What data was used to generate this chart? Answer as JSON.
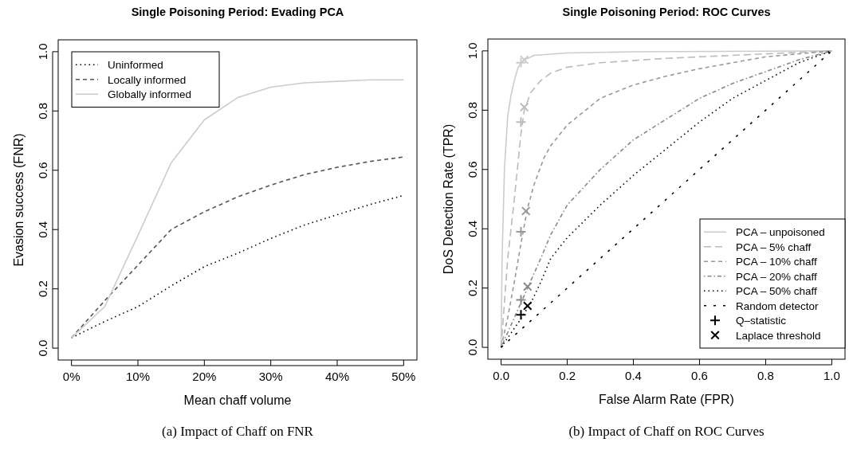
{
  "chart_data": [
    {
      "type": "line",
      "title": "Single Poisoning Period: Evading PCA",
      "xlabel": "Mean chaff volume",
      "ylabel": "Evasion success (FNR)",
      "annotations": [
        "(a) Impact of Chaff on FNR"
      ],
      "x": [
        0,
        5,
        10,
        15,
        20,
        25,
        30,
        35,
        40,
        45,
        50
      ],
      "xlim": [
        -2,
        52
      ],
      "xticks": [
        {
          "value": 0,
          "label": "0%"
        },
        {
          "value": 10,
          "label": "10%"
        },
        {
          "value": 20,
          "label": "20%"
        },
        {
          "value": 30,
          "label": "30%"
        },
        {
          "value": 40,
          "label": "40%"
        },
        {
          "value": 50,
          "label": "50%"
        }
      ],
      "ylim": [
        -0.04,
        1.04
      ],
      "yticks": [
        {
          "value": 0,
          "label": "0.0"
        },
        {
          "value": 0.2,
          "label": "0.2"
        },
        {
          "value": 0.4,
          "label": "0.4"
        },
        {
          "value": 0.6,
          "label": "0.6"
        },
        {
          "value": 0.8,
          "label": "0.8"
        },
        {
          "value": 1,
          "label": "1.0"
        }
      ],
      "legend": "top left",
      "series": [
        {
          "name": "Uninformed",
          "color": "#000000",
          "line_style": "dotted",
          "values": [
            0.035,
            0.09,
            0.14,
            0.21,
            0.275,
            0.32,
            0.37,
            0.415,
            0.45,
            0.485,
            0.515
          ]
        },
        {
          "name": "Locally informed",
          "color": "#555555",
          "line_style": "dashed",
          "values": [
            0.035,
            0.16,
            0.28,
            0.4,
            0.46,
            0.51,
            0.55,
            0.585,
            0.61,
            0.63,
            0.645
          ]
        },
        {
          "name": "Globally informed",
          "color": "#cccccc",
          "line_style": "solid",
          "values": [
            0.035,
            0.14,
            0.38,
            0.625,
            0.77,
            0.845,
            0.88,
            0.895,
            0.9,
            0.905,
            0.905
          ]
        }
      ]
    },
    {
      "type": "line",
      "title": "Single Poisoning Period: ROC Curves",
      "xlabel": "False Alarm Rate (FPR)",
      "ylabel": "DoS Detection Rate (TPR)",
      "annotations": [
        "(b) Impact of Chaff on ROC Curves"
      ],
      "xlim": [
        -0.04,
        1.04
      ],
      "xticks": [
        {
          "value": 0,
          "label": "0.0"
        },
        {
          "value": 0.2,
          "label": "0.2"
        },
        {
          "value": 0.4,
          "label": "0.4"
        },
        {
          "value": 0.6,
          "label": "0.6"
        },
        {
          "value": 0.8,
          "label": "0.8"
        },
        {
          "value": 1,
          "label": "1.0"
        }
      ],
      "ylim": [
        -0.04,
        1.04
      ],
      "yticks": [
        {
          "value": 0,
          "label": "0.0"
        },
        {
          "value": 0.2,
          "label": "0.2"
        },
        {
          "value": 0.4,
          "label": "0.4"
        },
        {
          "value": 0.6,
          "label": "0.6"
        },
        {
          "value": 0.8,
          "label": "0.8"
        },
        {
          "value": 1,
          "label": "1.0"
        }
      ],
      "legend": "bottom right",
      "series": [
        {
          "name": "PCA – unpoisoned",
          "color": "#cccccc",
          "line_style": "solid",
          "x": [
            0,
            0.003,
            0.01,
            0.02,
            0.03,
            0.04,
            0.05,
            0.06,
            0.08,
            0.1,
            0.2,
            0.4,
            1
          ],
          "values": [
            0,
            0.3,
            0.6,
            0.78,
            0.85,
            0.9,
            0.94,
            0.96,
            0.975,
            0.985,
            0.993,
            0.997,
            1
          ]
        },
        {
          "name": "PCA – 5% chaff",
          "color": "#bbbbbb",
          "line_style": "longdash",
          "x": [
            0,
            0.01,
            0.02,
            0.04,
            0.06,
            0.07,
            0.09,
            0.12,
            0.15,
            0.2,
            0.3,
            0.5,
            0.7,
            1
          ],
          "values": [
            0,
            0.15,
            0.3,
            0.5,
            0.72,
            0.8,
            0.86,
            0.9,
            0.925,
            0.945,
            0.96,
            0.975,
            0.985,
            1
          ]
        },
        {
          "name": "PCA – 10% chaff",
          "color": "#999999",
          "line_style": "dashed",
          "x": [
            0,
            0.02,
            0.04,
            0.06,
            0.08,
            0.1,
            0.13,
            0.15,
            0.2,
            0.3,
            0.4,
            0.5,
            0.6,
            0.7,
            0.8,
            1
          ],
          "values": [
            0,
            0.1,
            0.22,
            0.35,
            0.47,
            0.55,
            0.64,
            0.68,
            0.75,
            0.84,
            0.885,
            0.915,
            0.94,
            0.96,
            0.98,
            1
          ]
        },
        {
          "name": "PCA – 20% chaff",
          "color": "#888888",
          "line_style": "dotdash",
          "x": [
            0,
            0.04,
            0.08,
            0.12,
            0.15,
            0.2,
            0.3,
            0.4,
            0.5,
            0.6,
            0.7,
            0.8,
            0.9,
            1
          ],
          "values": [
            0,
            0.1,
            0.2,
            0.3,
            0.38,
            0.48,
            0.6,
            0.7,
            0.77,
            0.84,
            0.89,
            0.93,
            0.97,
            1
          ]
        },
        {
          "name": "PCA – 50% chaff",
          "color": "#000000",
          "line_style": "dotted",
          "x": [
            0,
            0.05,
            0.09,
            0.12,
            0.15,
            0.2,
            0.3,
            0.4,
            0.5,
            0.6,
            0.7,
            0.8,
            0.9,
            1
          ],
          "values": [
            0,
            0.08,
            0.15,
            0.22,
            0.3,
            0.37,
            0.48,
            0.58,
            0.67,
            0.76,
            0.84,
            0.9,
            0.96,
            1
          ]
        },
        {
          "name": "Random detector",
          "color": "#000000",
          "line_style": "sparsedash",
          "x": [
            0,
            1
          ],
          "values": [
            0,
            1
          ]
        },
        {
          "name": "Q–statistic",
          "type": "scatter",
          "marker": "plus",
          "color": "#000000",
          "colors": [
            "#cccccc",
            "#bbbbbb",
            "#999999",
            "#888888",
            "#000000"
          ],
          "x": [
            0.06,
            0.06,
            0.06,
            0.06,
            0.06
          ],
          "values": [
            0.96,
            0.76,
            0.39,
            0.16,
            0.11
          ]
        },
        {
          "name": "Laplace threshold",
          "type": "scatter",
          "marker": "cross",
          "color": "#000000",
          "colors": [
            "#cccccc",
            "#bbbbbb",
            "#999999",
            "#888888",
            "#000000"
          ],
          "x": [
            0.07,
            0.07,
            0.075,
            0.08,
            0.08
          ],
          "values": [
            0.97,
            0.81,
            0.46,
            0.205,
            0.14
          ]
        }
      ]
    }
  ]
}
